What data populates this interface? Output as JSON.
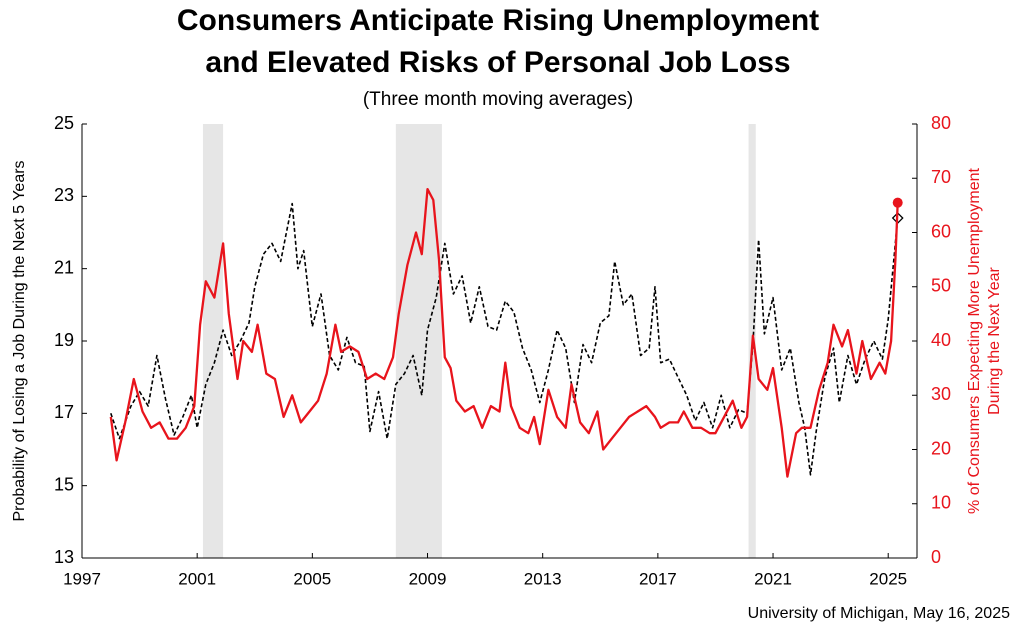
{
  "chart_data": {
    "type": "line",
    "title": [
      "Consumers Anticipate Rising Unemployment",
      "and Elevated Risks of Personal Job Loss"
    ],
    "subtitle": "(Three month moving averages)",
    "ylabel": "Probability of Losing a Job During the Next 5 Years",
    "y2label": [
      "% of Consumers Expecting More Unemployment",
      "During the Next Year"
    ],
    "source": "University of Michigan, May 16, 2025",
    "xlim": [
      1997,
      2026
    ],
    "xticks": [
      1997,
      2001,
      2005,
      2009,
      2013,
      2017,
      2021,
      2025
    ],
    "ylim": [
      13,
      25
    ],
    "yticks": [
      13,
      15,
      17,
      19,
      21,
      23,
      25
    ],
    "y2lim": [
      0,
      80
    ],
    "y2ticks": [
      0,
      10,
      20,
      30,
      40,
      50,
      60,
      70,
      80
    ],
    "y2color": "#e8141c",
    "shaded_periods": [
      [
        2001.2,
        2001.9
      ],
      [
        2007.9,
        2009.5
      ],
      [
        2020.15,
        2020.4
      ]
    ],
    "shade_color": "#e6e6e6",
    "series": [
      {
        "color": "#000000",
        "dashed": true,
        "axis": "y",
        "end_marker": "diamond",
        "x": [
          1998.0,
          1998.3,
          1998.7,
          1999.0,
          1999.3,
          1999.6,
          1999.9,
          2000.2,
          2000.5,
          2000.8,
          2001.0,
          2001.3,
          2001.6,
          2001.9,
          2002.2,
          2002.5,
          2002.8,
          2003.0,
          2003.3,
          2003.6,
          2003.9,
          2004.1,
          2004.3,
          2004.5,
          2004.7,
          2005.0,
          2005.3,
          2005.6,
          2005.9,
          2006.2,
          2006.5,
          2006.8,
          2007.0,
          2007.3,
          2007.6,
          2007.9,
          2008.2,
          2008.5,
          2008.8,
          2009.0,
          2009.3,
          2009.6,
          2009.9,
          2010.2,
          2010.5,
          2010.8,
          2011.1,
          2011.4,
          2011.7,
          2012.0,
          2012.3,
          2012.6,
          2012.9,
          2013.2,
          2013.5,
          2013.8,
          2014.1,
          2014.4,
          2014.7,
          2015.0,
          2015.3,
          2015.5,
          2015.8,
          2016.1,
          2016.4,
          2016.7,
          2016.9,
          2017.1,
          2017.4,
          2017.7,
          2018.0,
          2018.3,
          2018.6,
          2018.9,
          2019.2,
          2019.5,
          2019.8,
          2020.1,
          2020.3,
          2020.5,
          2020.7,
          2021.0,
          2021.3,
          2021.6,
          2021.9,
          2022.1,
          2022.3,
          2022.5,
          2022.8,
          2023.1,
          2023.3,
          2023.6,
          2023.9,
          2024.2,
          2024.5,
          2024.8,
          2025.0,
          2025.2,
          2025.33
        ],
        "values": [
          17.0,
          16.3,
          17.2,
          17.6,
          17.2,
          18.6,
          17.4,
          16.4,
          16.9,
          17.5,
          16.6,
          17.8,
          18.4,
          19.3,
          18.6,
          19.0,
          19.5,
          20.5,
          21.4,
          21.7,
          21.2,
          22.0,
          22.8,
          21.0,
          21.5,
          19.4,
          20.3,
          18.6,
          18.2,
          19.1,
          18.4,
          18.3,
          16.5,
          17.6,
          16.3,
          17.8,
          18.1,
          18.6,
          17.5,
          19.3,
          20.2,
          21.7,
          20.3,
          20.8,
          19.5,
          20.5,
          19.4,
          19.3,
          20.1,
          19.8,
          18.8,
          18.2,
          17.3,
          18.2,
          19.3,
          18.8,
          17.3,
          18.9,
          18.4,
          19.5,
          19.7,
          21.2,
          20.0,
          20.3,
          18.6,
          18.8,
          20.5,
          18.4,
          18.5,
          18.0,
          17.5,
          16.8,
          17.3,
          16.6,
          17.5,
          16.6,
          17.1,
          17.0,
          18.9,
          21.8,
          19.2,
          20.2,
          18.2,
          18.8,
          17.3,
          16.6,
          15.3,
          16.5,
          18.0,
          18.8,
          17.3,
          18.6,
          17.8,
          18.5,
          19.0,
          18.5,
          19.6,
          21.3,
          22.4
        ]
      },
      {
        "color": "#e8141c",
        "dashed": false,
        "axis": "y2",
        "end_marker": "circle",
        "x": [
          1998.0,
          1998.2,
          1998.5,
          1998.8,
          1999.1,
          1999.4,
          1999.7,
          2000.0,
          2000.3,
          2000.6,
          2000.9,
          2001.1,
          2001.3,
          2001.6,
          2001.9,
          2002.1,
          2002.4,
          2002.6,
          2002.9,
          2003.1,
          2003.4,
          2003.7,
          2004.0,
          2004.3,
          2004.6,
          2004.9,
          2005.2,
          2005.5,
          2005.8,
          2006.0,
          2006.3,
          2006.6,
          2006.9,
          2007.2,
          2007.5,
          2007.8,
          2008.0,
          2008.3,
          2008.6,
          2008.8,
          2009.0,
          2009.2,
          2009.4,
          2009.6,
          2009.8,
          2010.0,
          2010.3,
          2010.6,
          2010.9,
          2011.2,
          2011.5,
          2011.7,
          2011.9,
          2012.2,
          2012.5,
          2012.7,
          2012.9,
          2013.2,
          2013.5,
          2013.8,
          2014.0,
          2014.3,
          2014.6,
          2014.9,
          2015.1,
          2015.4,
          2015.7,
          2016.0,
          2016.3,
          2016.6,
          2016.9,
          2017.1,
          2017.4,
          2017.7,
          2017.9,
          2018.2,
          2018.5,
          2018.8,
          2019.0,
          2019.3,
          2019.6,
          2019.9,
          2020.1,
          2020.3,
          2020.5,
          2020.8,
          2021.0,
          2021.3,
          2021.5,
          2021.8,
          2022.0,
          2022.3,
          2022.6,
          2022.9,
          2023.1,
          2023.4,
          2023.6,
          2023.9,
          2024.1,
          2024.4,
          2024.7,
          2024.9,
          2025.1,
          2025.25,
          2025.33
        ],
        "values": [
          26,
          18,
          25,
          33,
          27,
          24,
          25,
          22,
          22,
          24,
          28,
          43,
          51,
          48,
          58,
          45,
          33,
          40,
          38,
          43,
          34,
          33,
          26,
          30,
          25,
          27,
          29,
          34,
          43,
          38,
          39,
          38,
          33,
          34,
          33,
          37,
          45,
          54,
          60,
          56,
          68,
          66,
          55,
          37,
          35,
          29,
          27,
          28,
          24,
          28,
          27,
          36,
          28,
          24,
          23,
          26,
          21,
          31,
          26,
          24,
          32,
          25,
          23,
          27,
          20,
          22,
          24,
          26,
          27,
          28,
          26,
          24,
          25,
          25,
          27,
          24,
          24,
          23,
          23,
          26,
          29,
          24,
          26,
          41,
          33,
          31,
          35,
          24,
          15,
          23,
          24,
          24,
          31,
          36,
          43,
          39,
          42,
          34,
          40,
          33,
          36,
          34,
          40,
          55,
          65.5
        ]
      }
    ]
  }
}
